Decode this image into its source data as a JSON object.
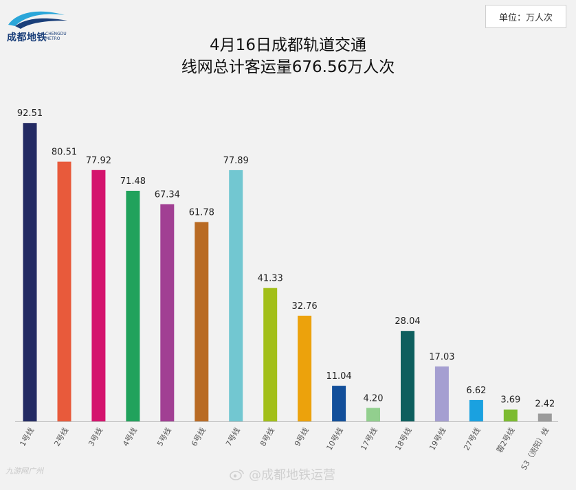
{
  "logo": {
    "text": "成都地铁",
    "sub": "CHENGDU METRO"
  },
  "unit": "单位：万人次",
  "title_lines": [
    "4月16日成都轨道交通",
    "线网总计客运量676.56万人次"
  ],
  "watermark_left": "九游网广州",
  "watermark_right": "@成都地铁运营",
  "chart_data": {
    "type": "bar",
    "title": "4月16日成都轨道交通 线网总计客运量676.56万人次",
    "unit": "单位：万人次",
    "categories": [
      "1号线",
      "2号线",
      "3号线",
      "4号线",
      "5号线",
      "6号线",
      "7号线",
      "8号线",
      "9号线",
      "10号线",
      "17号线",
      "18号线",
      "19号线",
      "27号线",
      "蓉2号线",
      "S3（资阳）线"
    ],
    "values": [
      92.51,
      80.51,
      77.92,
      71.48,
      67.34,
      61.78,
      77.89,
      41.33,
      32.76,
      11.04,
      4.2,
      28.04,
      17.03,
      6.62,
      3.69,
      2.42
    ],
    "labels": [
      "92.51",
      "80.51",
      "77.92",
      "71.48",
      "67.34",
      "61.78",
      "77.89",
      "41.33",
      "32.76",
      "11.04",
      "4.20",
      "28.04",
      "17.03",
      "6.62",
      "3.69",
      "2.42"
    ],
    "colors": [
      "#232a63",
      "#e85a3b",
      "#d4136d",
      "#21a25c",
      "#a13f93",
      "#b96b24",
      "#72c7d1",
      "#a2bf19",
      "#eca20c",
      "#124f9a",
      "#92cf8e",
      "#0e5f5e",
      "#a59fd1",
      "#1aa1e0",
      "#7cbb31",
      "#9b9b9b"
    ],
    "ylim": [
      0,
      100
    ],
    "grid": false,
    "legend": "none"
  }
}
